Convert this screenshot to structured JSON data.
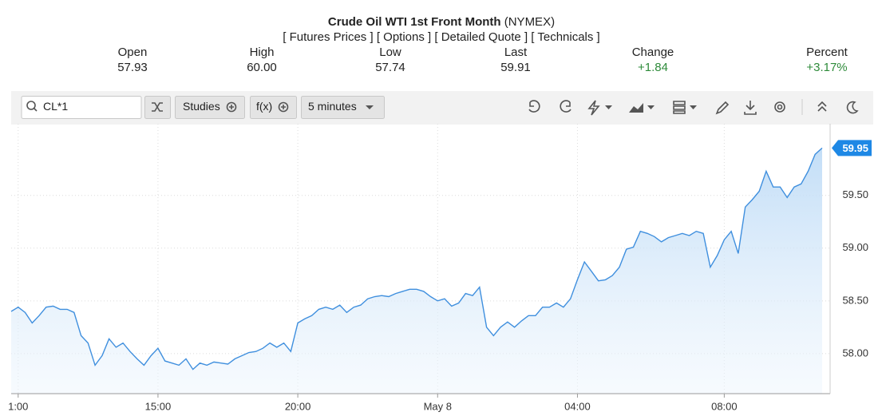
{
  "header": {
    "title": "Crude Oil WTI 1st Front Month",
    "exchange": "(NYMEX)",
    "links": [
      "[ Futures Prices ]",
      "[ Options ]",
      "[ Detailed Quote ]",
      "[ Technicals ]"
    ]
  },
  "quote": [
    {
      "label": "Open",
      "value": "57.93"
    },
    {
      "label": "High",
      "value": "60.00"
    },
    {
      "label": "Low",
      "value": "57.74"
    },
    {
      "label": "Last",
      "value": "59.91"
    },
    {
      "label": "Change",
      "value": "+1.84"
    },
    {
      "label": "Percent",
      "value": "+3.17%"
    }
  ],
  "toolbar": {
    "symbol": "CL*1",
    "studies": "Studies",
    "function": "f(x)",
    "interval": "5 minutes"
  },
  "chart_data": {
    "type": "area",
    "color": "#3f8fde",
    "grid": true,
    "last_value": 59.95,
    "categories": [
      null,
      "1:00",
      null,
      null,
      null,
      null,
      null,
      null,
      null,
      null,
      null,
      null,
      null,
      null,
      null,
      null,
      null,
      null,
      null,
      null,
      null,
      "15:00",
      null,
      null,
      null,
      null,
      null,
      null,
      null,
      null,
      null,
      null,
      null,
      null,
      null,
      null,
      null,
      null,
      null,
      null,
      null,
      "20:00",
      null,
      null,
      null,
      null,
      null,
      null,
      null,
      null,
      null,
      null,
      null,
      null,
      null,
      null,
      null,
      null,
      null,
      null,
      null,
      "May 8",
      null,
      null,
      null,
      null,
      null,
      null,
      null,
      null,
      null,
      null,
      null,
      null,
      null,
      null,
      null,
      null,
      null,
      null,
      null,
      "04:00",
      null,
      null,
      null,
      null,
      null,
      null,
      null,
      null,
      null,
      null,
      null,
      null,
      null,
      null,
      null,
      null,
      null,
      null,
      null,
      null,
      "08:00",
      null,
      null,
      null,
      null,
      null,
      null,
      null,
      null,
      null,
      null,
      null,
      null,
      null,
      null
    ],
    "values": [
      58.4,
      58.44,
      58.39,
      58.29,
      58.36,
      58.44,
      58.45,
      58.42,
      58.42,
      58.39,
      58.17,
      58.1,
      57.89,
      57.98,
      58.14,
      58.06,
      58.1,
      58.02,
      57.95,
      57.89,
      57.98,
      58.05,
      57.93,
      57.91,
      57.89,
      57.95,
      57.85,
      57.91,
      57.89,
      57.92,
      57.91,
      57.9,
      57.95,
      57.98,
      58.01,
      58.02,
      58.05,
      58.1,
      58.06,
      58.1,
      58.02,
      58.29,
      58.33,
      58.36,
      58.42,
      58.44,
      58.42,
      58.46,
      58.39,
      58.44,
      58.46,
      58.52,
      58.54,
      58.55,
      58.54,
      58.57,
      58.59,
      58.61,
      58.61,
      58.59,
      58.54,
      58.5,
      58.52,
      58.45,
      58.48,
      58.57,
      58.55,
      58.63,
      58.25,
      58.17,
      58.25,
      58.3,
      58.25,
      58.31,
      58.36,
      58.36,
      58.44,
      58.44,
      58.48,
      58.44,
      58.52,
      58.7,
      58.87,
      58.78,
      58.69,
      58.7,
      58.74,
      58.82,
      58.99,
      59.01,
      59.16,
      59.14,
      59.11,
      59.06,
      59.1,
      59.12,
      59.14,
      59.12,
      59.16,
      59.14,
      58.82,
      58.93,
      59.08,
      59.16,
      58.95,
      59.39,
      59.46,
      59.54,
      59.73,
      59.58,
      59.58,
      59.48,
      59.58,
      59.61,
      59.73,
      59.89,
      59.95
    ],
    "ylim": [
      57.62,
      60.18
    ],
    "yticks": [
      {
        "value": 58,
        "label": "58.00"
      },
      {
        "value": 58.5,
        "label": "58.50"
      },
      {
        "value": 59,
        "label": "59.00"
      },
      {
        "value": 59.5,
        "label": "59.50"
      }
    ]
  }
}
